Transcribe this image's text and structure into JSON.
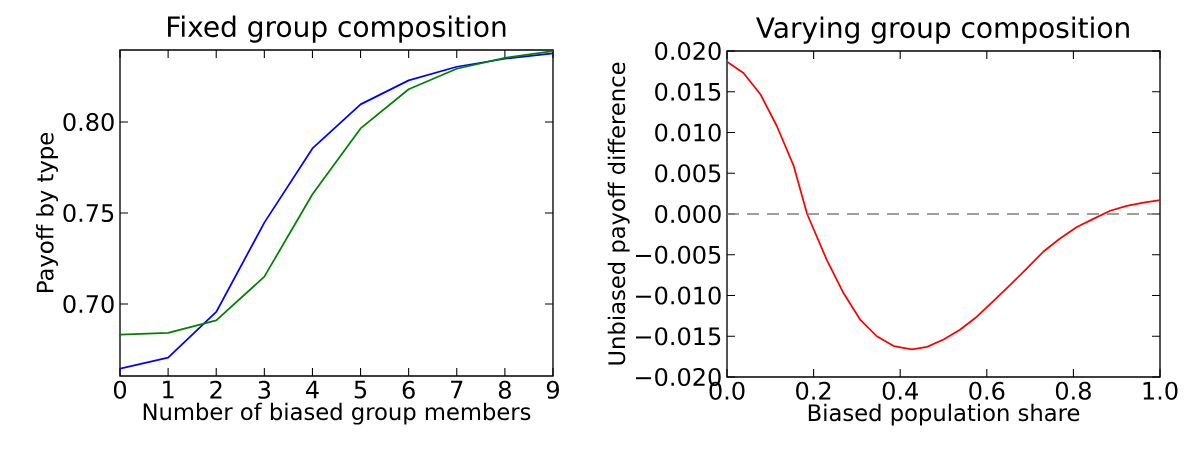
{
  "chart_data": [
    {
      "type": "line",
      "title": "Fixed group composition",
      "xlabel": "Number of biased group members",
      "ylabel": "Payoff by type",
      "x": [
        0,
        1,
        2,
        3,
        4,
        5,
        6,
        7,
        8,
        9
      ],
      "series": [
        {
          "color": "#0000ff",
          "values": [
            0.6645,
            0.6705,
            0.6956,
            0.7447,
            0.7855,
            0.8097,
            0.8229,
            0.8304,
            0.8348,
            0.8377
          ]
        },
        {
          "color": "#008000",
          "values": [
            0.6831,
            0.6841,
            0.691,
            0.715,
            0.7603,
            0.7965,
            0.818,
            0.8293,
            0.8353,
            0.839
          ]
        }
      ],
      "xlim": [
        0,
        9
      ],
      "ylim": [
        0.6604,
        0.8396
      ],
      "xticks": [
        0,
        1,
        2,
        3,
        4,
        5,
        6,
        7,
        8,
        9
      ],
      "yticks": [
        {
          "value": 0.7,
          "label": "0.70"
        },
        {
          "value": 0.75,
          "label": "0.75"
        },
        {
          "value": 0.8,
          "label": "0.80"
        }
      ]
    },
    {
      "type": "line",
      "title": "Varying group composition",
      "xlabel": "Biased population share",
      "ylabel": "Unbiased payoff difference",
      "series": [
        {
          "color": "#ff0000",
          "x": [
            0,
            0.038,
            0.077,
            0.115,
            0.154,
            0.185,
            0.231,
            0.269,
            0.308,
            0.346,
            0.385,
            0.427,
            0.462,
            0.5,
            0.538,
            0.577,
            0.615,
            0.654,
            0.692,
            0.731,
            0.769,
            0.808,
            0.846,
            0.885,
            0.923,
            0.962,
            1.0
          ],
          "values": [
            0.0187,
            0.0173,
            0.0147,
            0.0108,
            0.0059,
            0.0,
            -0.0057,
            -0.0097,
            -0.013,
            -0.015,
            -0.0162,
            -0.0166,
            -0.0163,
            -0.0154,
            -0.0142,
            -0.0126,
            -0.0107,
            -0.0087,
            -0.0067,
            -0.0046,
            -0.003,
            -0.0016,
            -0.0006,
            0.0004,
            0.001,
            0.0014,
            0.0017
          ]
        }
      ],
      "xlim": [
        0,
        1
      ],
      "ylim": [
        -0.02,
        0.02
      ],
      "xticks": [
        {
          "value": 0,
          "label": "0.0"
        },
        {
          "value": 0.2,
          "label": "0.2"
        },
        {
          "value": 0.4,
          "label": "0.4"
        },
        {
          "value": 0.6,
          "label": "0.6"
        },
        {
          "value": 0.8,
          "label": "0.8"
        },
        {
          "value": 1.0,
          "label": "1.0"
        }
      ],
      "yticks": [
        {
          "value": -0.02,
          "label": "−0.020"
        },
        {
          "value": -0.015,
          "label": "−0.015"
        },
        {
          "value": -0.01,
          "label": "−0.010"
        },
        {
          "value": -0.005,
          "label": "−0.005"
        },
        {
          "value": 0,
          "label": "0.000"
        },
        {
          "value": 0.005,
          "label": "0.005"
        },
        {
          "value": 0.01,
          "label": "0.010"
        },
        {
          "value": 0.015,
          "label": "0.015"
        },
        {
          "value": 0.02,
          "label": "0.020"
        }
      ],
      "ref_lines": [
        {
          "axis": "y",
          "value": 0,
          "color": "#808080",
          "line_style": "dashed"
        }
      ]
    }
  ]
}
